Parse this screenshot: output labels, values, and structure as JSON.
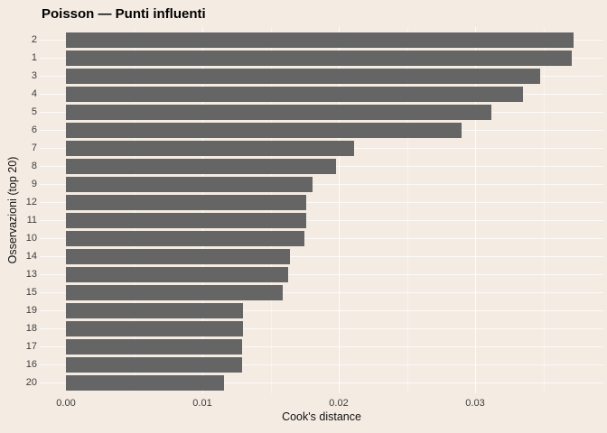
{
  "chart_data": {
    "type": "bar",
    "orientation": "horizontal",
    "title": "Poisson — Punti influenti",
    "xlabel": "Cook's distance",
    "ylabel": "Osservazioni (top 20)",
    "categories": [
      "2",
      "1",
      "3",
      "4",
      "5",
      "6",
      "7",
      "8",
      "9",
      "12",
      "11",
      "10",
      "14",
      "13",
      "15",
      "19",
      "18",
      "17",
      "16",
      "20"
    ],
    "values": [
      0.0372,
      0.0371,
      0.0348,
      0.0335,
      0.0312,
      0.029,
      0.0211,
      0.0198,
      0.0181,
      0.0176,
      0.0176,
      0.0175,
      0.0164,
      0.0163,
      0.0159,
      0.013,
      0.013,
      0.0129,
      0.0129,
      0.0116
    ],
    "x_ticks": [
      "0.00",
      "0.01",
      "0.02",
      "0.03"
    ],
    "x_tick_values": [
      0.0,
      0.01,
      0.02,
      0.03
    ],
    "x_minor_tick_values": [
      0.005,
      0.015,
      0.025,
      0.035
    ],
    "xlim": [
      0,
      0.0394
    ],
    "grid": true,
    "legend": null,
    "bar_color": "#656565",
    "background_color": "#f4ebe3",
    "gridline_color": "#ffffff"
  }
}
